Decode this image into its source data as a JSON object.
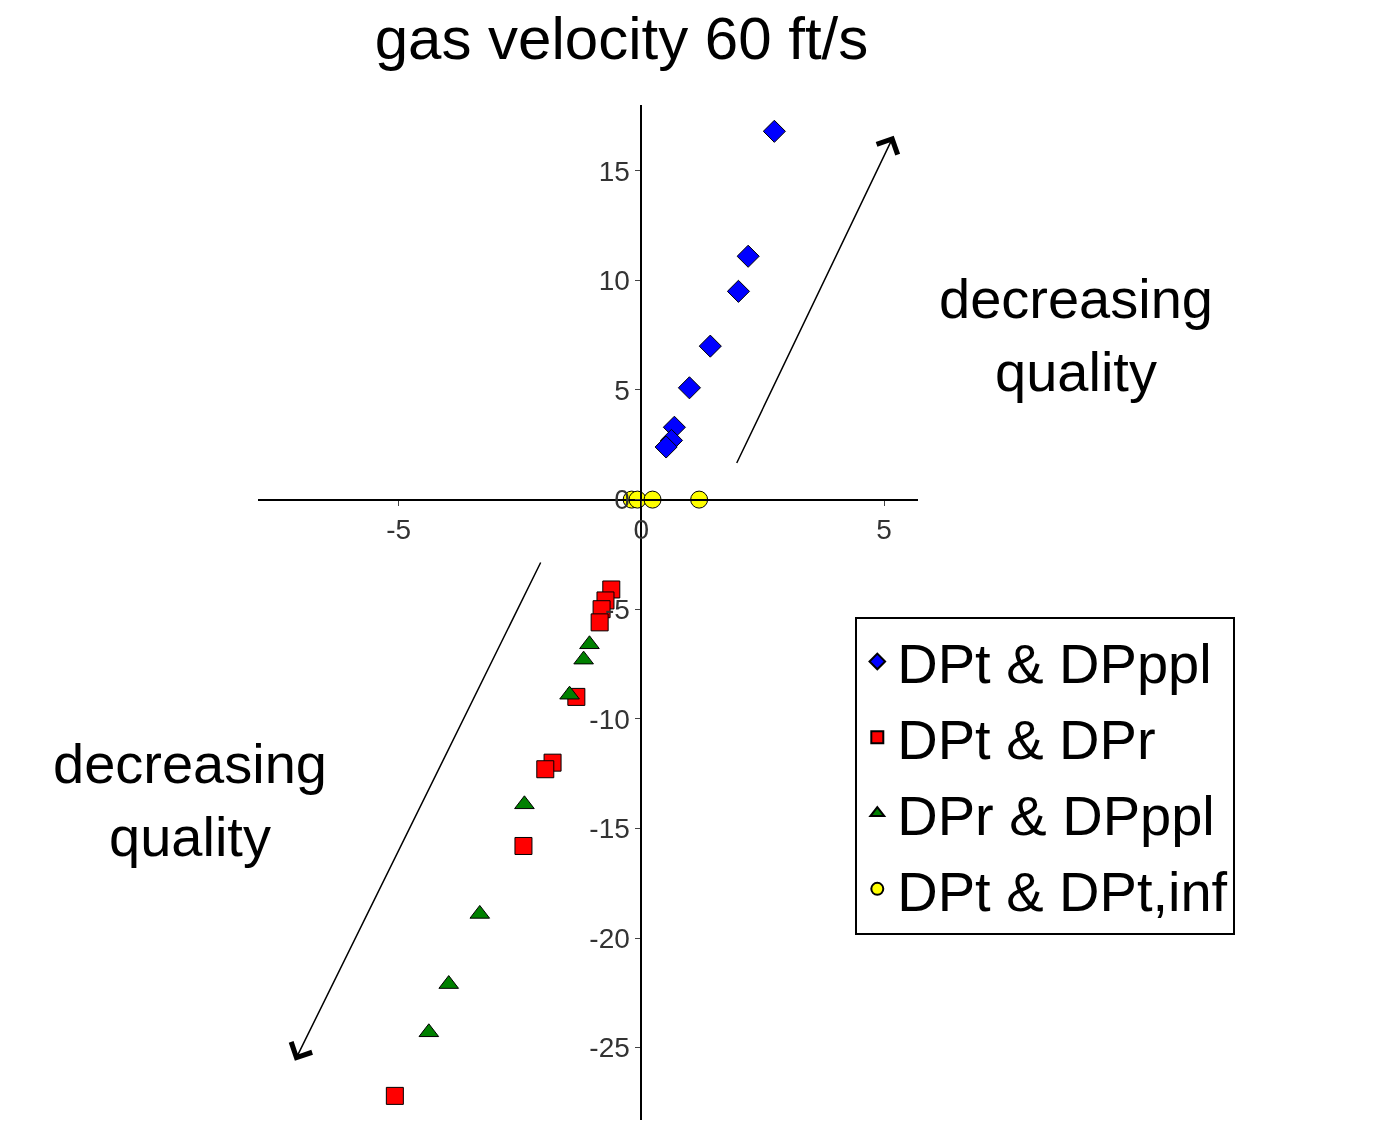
{
  "chart_data": {
    "type": "scatter",
    "title": "gas velocity 60 ft/s",
    "xlim": [
      -7.9,
      5.7
    ],
    "xticks": [
      -5,
      0,
      5
    ],
    "ylim": [
      -28.3,
      18
    ],
    "yticks": [
      -25,
      -20,
      -15,
      -10,
      -5,
      0,
      5,
      10,
      15
    ],
    "legend": "right",
    "annotations": [
      "decreasing\nquality",
      "decreasing\nquality"
    ],
    "series": [
      {
        "name": "DPt & DPppl",
        "color": "#0000ff",
        "marker": "diamond",
        "x": [
          2.74,
          2.2,
          2.0,
          1.42,
          0.99,
          0.68,
          0.62,
          0.51
        ],
        "values": [
          16.8,
          11.1,
          9.5,
          7.0,
          5.1,
          3.3,
          2.7,
          2.4
        ]
      },
      {
        "name": "DPt & DPr",
        "color": "#ff0000",
        "marker": "square",
        "x": [
          -0.62,
          -0.74,
          -0.82,
          -0.86,
          -1.34,
          -1.83,
          -1.98,
          -2.43,
          -5.08
        ],
        "values": [
          -4.1,
          -4.6,
          -5.0,
          -5.6,
          -9.0,
          -12.0,
          -12.3,
          -15.8,
          -27.2
        ]
      },
      {
        "name": "DPr & DPppl",
        "color": "#008000",
        "marker": "triangle",
        "x": [
          -1.07,
          -1.19,
          -1.48,
          -2.41,
          -3.33,
          -3.97,
          -4.38
        ],
        "values": [
          -6.6,
          -7.3,
          -8.9,
          -13.9,
          -18.9,
          -22.1,
          -24.3
        ]
      },
      {
        "name": "DPt & DPt,inf",
        "color": "#ffff00",
        "marker": "circle",
        "x": [
          -0.2,
          -0.08,
          0.23,
          1.19
        ],
        "values": [
          0,
          0,
          0,
          0
        ]
      }
    ]
  }
}
